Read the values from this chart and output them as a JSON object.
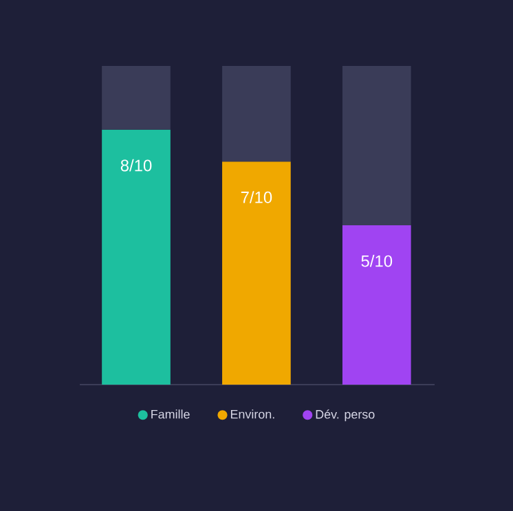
{
  "chart_data": {
    "type": "bar",
    "stacked": true,
    "categories": [
      null,
      null,
      null
    ],
    "ylim": [
      0,
      1
    ],
    "legend": "bottom",
    "series": [
      {
        "name": "Famille",
        "color": "#1dbf9f",
        "values": [
          0.8,
          null,
          null
        ],
        "value_labels": [
          "8/10",
          null,
          null
        ]
      },
      {
        "name": "Environ.",
        "color": "#f0a800",
        "values": [
          null,
          0.7,
          null
        ],
        "value_labels": [
          null,
          "7/10",
          null
        ]
      },
      {
        "name": "Dév. perso",
        "color": "#a044f2",
        "values": [
          null,
          null,
          0.5
        ],
        "value_labels": [
          null,
          null,
          "5/10"
        ]
      },
      {
        "color": "#3a3c58",
        "values": [
          0.2,
          0.3,
          0.5
        ]
      }
    ]
  }
}
